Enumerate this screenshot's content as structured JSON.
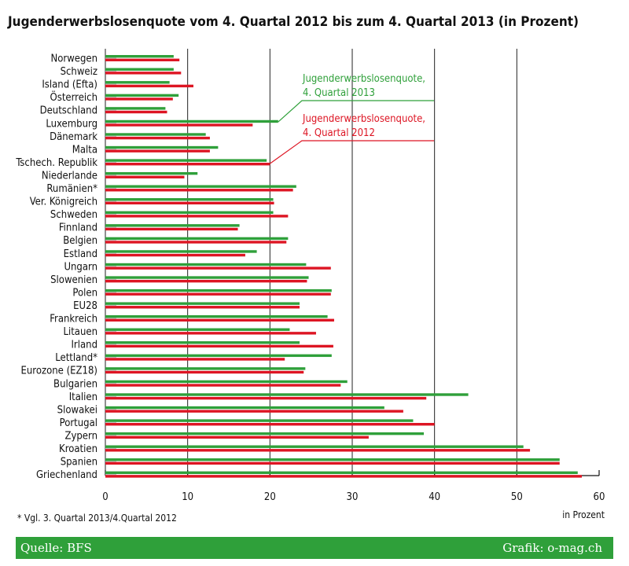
{
  "title": "Jugenderwerbslosenquote vom 4. Quartal 2012 bis zum 4. Quartal 2013 (in Prozent)",
  "footnote": "* Vgl. 3. Quartal 2013/4.Quartal 2012",
  "footer": {
    "source": "Quelle: BFS",
    "credit": "Grafik: o-mag.ch"
  },
  "colors": {
    "series_2013": "#2fa03a",
    "series_2012": "#dd1523",
    "footer_bg": "#2fa03a"
  },
  "chart_data": {
    "type": "bar",
    "orientation": "horizontal",
    "xlabel": "in Prozent",
    "xlim": [
      0,
      60
    ],
    "xticks": [
      "0",
      "10",
      "20",
      "30",
      "40",
      "50",
      "60"
    ],
    "grid": "vertical gridlines at 10, 20, 30, 40",
    "legend_placement": "top-right, annotated with leader lines",
    "categories": [
      "Norwegen",
      "Schweiz",
      "Island (Efta)",
      "Österreich",
      "Deutschland",
      "Luxemburg",
      "Dänemark",
      "Malta",
      "Tschech. Republik",
      "Niederlande",
      "Rumänien*",
      "Ver. Königreich",
      "Schweden",
      "Finnland",
      "Belgien",
      "Estland",
      "Ungarn",
      "Slowenien",
      "Polen",
      "EU28",
      "Frankreich",
      "Litauen",
      "Irland",
      "Lettland*",
      "Eurozone (EZ18)",
      "Bulgarien",
      "Italien",
      "Slowakei",
      "Portugal",
      "Zypern",
      "Kroatien",
      "Spanien",
      "Griechenland"
    ],
    "series": [
      {
        "name": "Jugenderwerbslosenquote, 4. Quartal 2013",
        "color": "#2fa03a",
        "values": [
          8.3,
          8.3,
          7.8,
          8.9,
          7.3,
          21.0,
          12.2,
          13.7,
          19.6,
          11.2,
          23.2,
          20.4,
          20.4,
          16.3,
          22.2,
          18.4,
          24.4,
          24.7,
          27.5,
          23.6,
          27.0,
          22.4,
          23.6,
          27.5,
          24.3,
          29.4,
          44.1,
          33.9,
          37.4,
          38.7,
          50.8,
          55.2,
          57.4
        ]
      },
      {
        "name": "Jugenderwerbslosenquote, 4. Quartal 2012",
        "color": "#dd1523",
        "values": [
          9.0,
          9.2,
          10.7,
          8.2,
          7.5,
          17.9,
          12.7,
          12.7,
          20.0,
          9.6,
          22.8,
          20.5,
          22.2,
          16.1,
          22.0,
          17.0,
          27.4,
          24.5,
          27.4,
          23.6,
          27.8,
          25.6,
          27.7,
          21.8,
          24.1,
          28.6,
          39.0,
          36.2,
          40.0,
          32.0,
          51.6,
          55.2,
          57.9
        ]
      }
    ],
    "legend": [
      {
        "line1": "Jugenderwerbslosenquote,",
        "line2": "4. Quartal 2013",
        "series": 0
      },
      {
        "line1": "Jugenderwerbslosenquote,",
        "line2": "4. Quartal 2012",
        "series": 1
      }
    ]
  }
}
